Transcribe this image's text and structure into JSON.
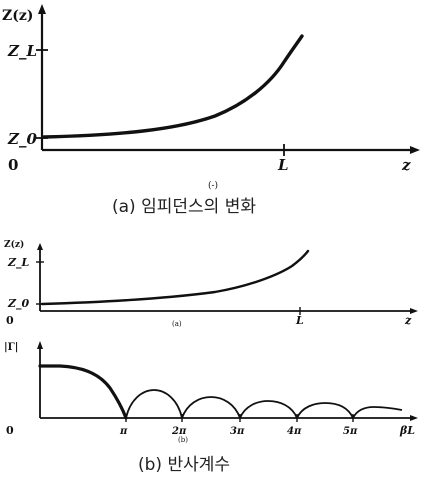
{
  "figure": {
    "top_plot": {
      "y_label": "Z(z)",
      "x_label": "z",
      "y_ticks": {
        "zl": "Z_L",
        "z0": "Z_0"
      },
      "x_ticks": {
        "origin": "0",
        "L": "L"
      },
      "sublabel": "(-)",
      "caption": "(a) 임피던스의 변화"
    },
    "bottom_plot": {
      "impedance": {
        "y_label": "Z(z)",
        "x_label": "z",
        "y_ticks": {
          "zl": "Z_L",
          "z0": "Z_0"
        },
        "x_ticks": {
          "origin": "0",
          "L": "L"
        },
        "sublabel": "(a)"
      },
      "reflection": {
        "y_label": "|Γ|",
        "x_label": "βL",
        "x_ticks": [
          "0",
          "π",
          "2π",
          "3π",
          "4π",
          "5π"
        ],
        "sublabel": "(b)"
      },
      "caption": "(b) 반사계수"
    }
  }
}
